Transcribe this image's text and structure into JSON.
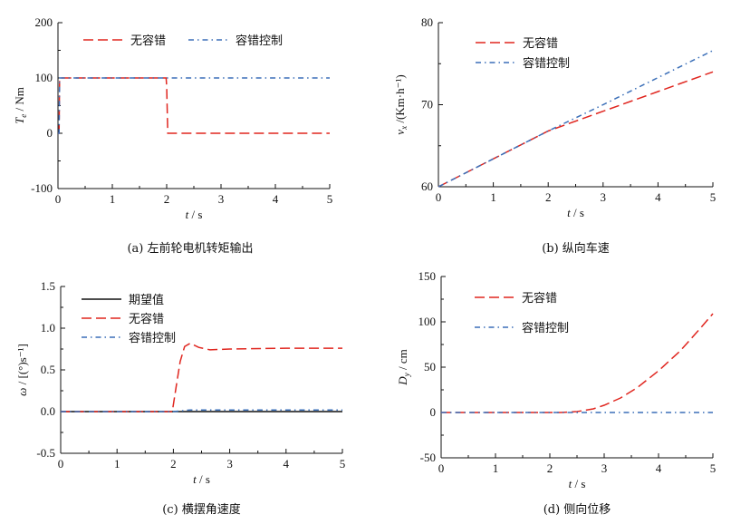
{
  "chart_data": [
    {
      "id": "a",
      "type": "line",
      "caption": "(a) 左前轮电机转矩输出",
      "xlabel_var": "t",
      "xlabel_unit": " / s",
      "ylabel_var": "T",
      "ylabel_sub": "e",
      "ylabel_unit": " / Nm",
      "xlim": [
        0,
        5
      ],
      "ylim": [
        -100,
        200
      ],
      "xticks": [
        0,
        1,
        2,
        3,
        4,
        5
      ],
      "yticks": [
        -100,
        0,
        100,
        200
      ],
      "legend": [
        "无容错",
        "容错控制"
      ],
      "series": [
        {
          "name": "无容错",
          "color": "#e0261f",
          "style": "dash",
          "x": [
            0,
            0.02,
            0.03,
            1.99,
            2.0,
            2.02,
            5.0
          ],
          "y": [
            0,
            0,
            100,
            100,
            85,
            0,
            0
          ]
        },
        {
          "name": "容错控制",
          "color": "#3b6fb8",
          "style": "dashdot",
          "x": [
            0,
            0.02,
            0.03,
            5.0
          ],
          "y": [
            0,
            0,
            100,
            100
          ]
        }
      ]
    },
    {
      "id": "b",
      "type": "line",
      "caption": "(b) 纵向车速",
      "xlabel_var": "t",
      "xlabel_unit": " / s",
      "ylabel_var": "v",
      "ylabel_sub": "x",
      "ylabel_unit": " /(Km·h⁻¹)",
      "xlim": [
        0,
        5
      ],
      "ylim": [
        60,
        80
      ],
      "xticks": [
        0,
        1,
        2,
        3,
        4,
        5
      ],
      "yticks": [
        60,
        70,
        80
      ],
      "legend": [
        "无容错",
        "容错控制"
      ],
      "series": [
        {
          "name": "无容错",
          "color": "#e0261f",
          "style": "dash",
          "x": [
            0,
            1,
            2,
            3,
            4,
            5
          ],
          "y": [
            60,
            63.4,
            66.8,
            69.2,
            71.6,
            74.0
          ]
        },
        {
          "name": "容错控制",
          "color": "#3b6fb8",
          "style": "dashdot",
          "x": [
            0,
            1,
            2,
            3,
            4,
            5
          ],
          "y": [
            60,
            63.4,
            66.8,
            70.0,
            73.3,
            76.6
          ]
        }
      ]
    },
    {
      "id": "c",
      "type": "line",
      "caption": "(c) 横摆角速度",
      "xlabel_var": "t",
      "xlabel_unit": " / s",
      "ylabel_var": "ω",
      "ylabel_sub": "",
      "ylabel_unit": " / [(°)s⁻¹]",
      "xlim": [
        0,
        5
      ],
      "ylim": [
        -0.5,
        1.5
      ],
      "xticks": [
        0,
        1,
        2,
        3,
        4,
        5
      ],
      "yticks": [
        -0.5,
        0.0,
        0.5,
        1.0,
        1.5
      ],
      "ytick_labels": [
        "-0.5",
        "0.0",
        "0.5",
        "1.0",
        "1.5"
      ],
      "legend": [
        "期望值",
        "无容错",
        "容错控制"
      ],
      "series": [
        {
          "name": "期望值",
          "color": "#111111",
          "style": "solid",
          "x": [
            0,
            5
          ],
          "y": [
            0,
            0
          ]
        },
        {
          "name": "无容错",
          "color": "#e0261f",
          "style": "dash",
          "x": [
            0,
            1.98,
            2.05,
            2.12,
            2.2,
            2.3,
            2.45,
            2.65,
            3.0,
            4.0,
            5.0
          ],
          "y": [
            0,
            0,
            0.3,
            0.6,
            0.78,
            0.82,
            0.77,
            0.74,
            0.75,
            0.76,
            0.76
          ]
        },
        {
          "name": "容错控制",
          "color": "#3b6fb8",
          "style": "dashdot",
          "x": [
            0,
            2.0,
            2.3,
            5.0
          ],
          "y": [
            0,
            0,
            0.02,
            0.02
          ]
        }
      ]
    },
    {
      "id": "d",
      "type": "line",
      "caption": "(d) 侧向位移",
      "xlabel_var": "t",
      "xlabel_unit": " / s",
      "ylabel_var": "D",
      "ylabel_sub": "y",
      "ylabel_unit": " / cm",
      "xlim": [
        0,
        5
      ],
      "ylim": [
        -50,
        150
      ],
      "xticks": [
        0,
        1,
        2,
        3,
        4,
        5
      ],
      "yticks": [
        -50,
        0,
        50,
        100,
        150
      ],
      "legend": [
        "无容错",
        "容错控制"
      ],
      "series": [
        {
          "name": "无容错",
          "color": "#e0261f",
          "style": "dash",
          "x": [
            0,
            2.2,
            2.5,
            2.8,
            3.0,
            3.3,
            3.6,
            4.0,
            4.4,
            4.8,
            5.0
          ],
          "y": [
            0,
            0,
            1,
            4,
            8,
            16,
            27,
            46,
            68,
            95,
            109
          ]
        },
        {
          "name": "容错控制",
          "color": "#3b6fb8",
          "style": "dashdot",
          "x": [
            0,
            5
          ],
          "y": [
            0,
            0
          ]
        }
      ]
    }
  ]
}
